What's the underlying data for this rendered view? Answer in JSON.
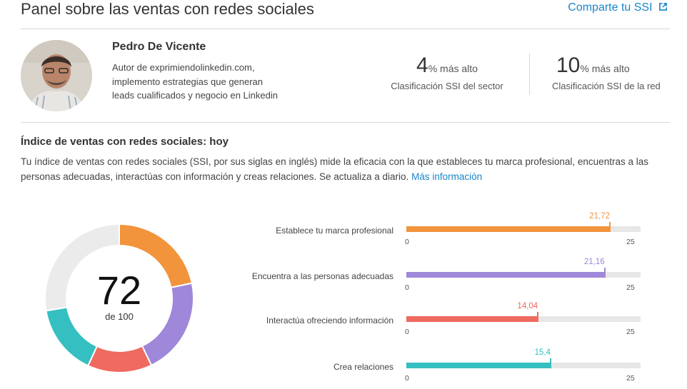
{
  "header": {
    "title": "Panel sobre las ventas con redes sociales",
    "share_link": "Comparte tu SSI",
    "share_icon": "external-link-icon"
  },
  "profile": {
    "name": "Pedro De Vicente",
    "bio": "Autor de exprimiendolinkedin.com, implemento estrategias que generan leads cualificados y negocio en Linkedin"
  },
  "rankings": [
    {
      "value": "4",
      "suffix": "% más alto",
      "caption": "Clasificación SSI del sector"
    },
    {
      "value": "10",
      "suffix": "% más alto",
      "caption": "Clasificación SSI de la red"
    }
  ],
  "index": {
    "subtitle": "Índice de ventas con redes sociales: hoy",
    "description": "Tu índice de ventas con redes sociales (SSI, por sus siglas en inglés) mide la eficacia con la que estableces tu marca profesional, encuentras a las personas adecuadas, interactúas con información y creas relaciones. Se actualiza a diario.",
    "more_link": "Más información"
  },
  "score": {
    "value": "72",
    "of": "de 100"
  },
  "chart_data": {
    "type": "bar",
    "orientation": "horizontal",
    "categories": [
      "Establece tu marca profesional",
      "Encuentra a las personas adecuadas",
      "Interactúa ofreciendo información",
      "Crea relaciones"
    ],
    "values": [
      21.72,
      21.16,
      14.04,
      15.4
    ],
    "value_labels": [
      "21,72",
      "21,16",
      "14,04",
      "15,4"
    ],
    "colors": [
      "#f2943c",
      "#9f87d9",
      "#ef6a5f",
      "#35bfc0"
    ],
    "xlim": [
      0,
      25
    ],
    "tick_labels": [
      "0",
      "25"
    ],
    "donut": {
      "total": "72",
      "max": 100,
      "colors": [
        "#f2943c",
        "#9f87d9",
        "#ef6a5f",
        "#35bfc0"
      ],
      "remainder_color": "#ebebeb"
    }
  }
}
